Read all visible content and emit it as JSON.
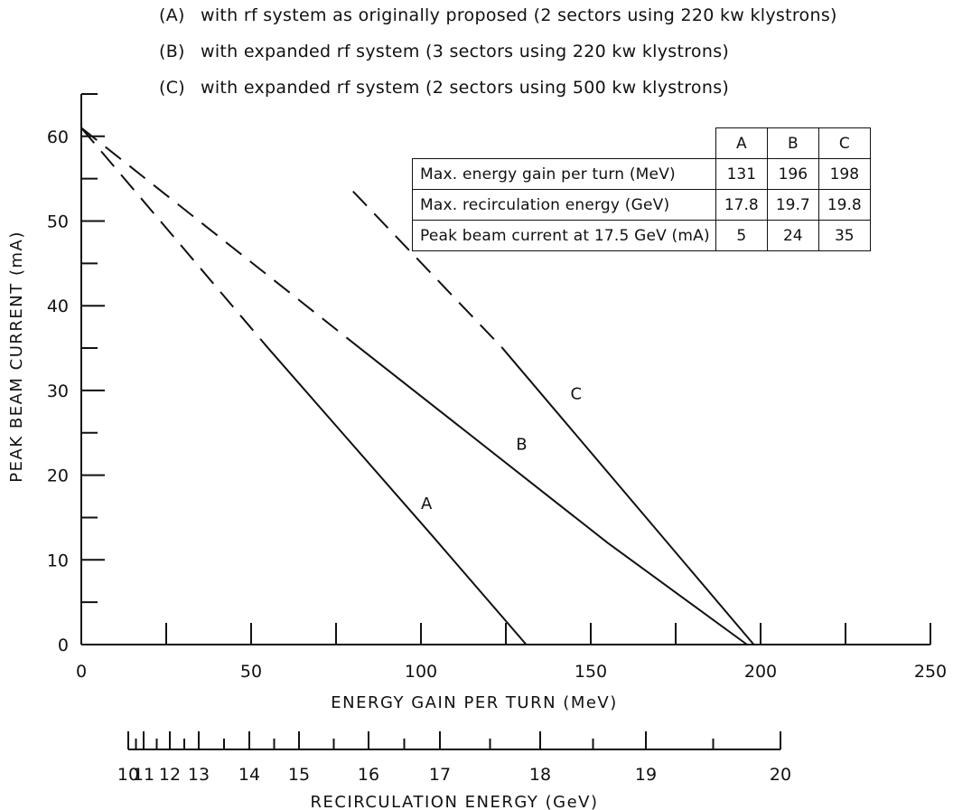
{
  "legend": [
    {
      "key": "(A)",
      "text": "with rf system as originally proposed (2 sectors using 220 kw klystrons)"
    },
    {
      "key": "(B)",
      "text": "with expanded rf system (3 sectors using 220 kw klystrons)"
    },
    {
      "key": "(C)",
      "text": "with expanded rf system (2 sectors using 500 kw klystrons)"
    }
  ],
  "table": {
    "columns": [
      "A",
      "B",
      "C"
    ],
    "rows": [
      {
        "label": "Max. energy gain per turn (MeV)",
        "values": [
          "131",
          "196",
          "198"
        ]
      },
      {
        "label": "Max. recirculation energy (GeV)",
        "values": [
          "17.8",
          "19.7",
          "19.8"
        ]
      },
      {
        "label": "Peak beam current at 17.5 GeV (mA)",
        "values": [
          "5",
          "24",
          "35"
        ]
      }
    ]
  },
  "chart_data": {
    "type": "line",
    "xlabel": "ENERGY GAIN PER TURN (MeV)",
    "ylabel": "PEAK BEAM CURRENT (mA)",
    "xlim": [
      0,
      250
    ],
    "ylim": [
      0,
      65
    ],
    "x_ticks": [
      0,
      50,
      100,
      150,
      200,
      250
    ],
    "y_ticks": [
      0,
      10,
      20,
      30,
      40,
      50,
      60
    ],
    "series": [
      {
        "name": "A",
        "label_at": [
          100,
          16
        ],
        "dashed": [
          [
            0,
            61
          ],
          [
            55,
            35
          ]
        ],
        "solid": [
          [
            55,
            35
          ],
          [
            103,
            13
          ],
          [
            131,
            0
          ]
        ]
      },
      {
        "name": "B",
        "label_at": [
          128,
          23
        ],
        "dashed": [
          [
            0,
            61
          ],
          [
            82,
            35
          ]
        ],
        "solid": [
          [
            82,
            35
          ],
          [
            155,
            12
          ],
          [
            196,
            0
          ]
        ]
      },
      {
        "name": "C",
        "label_at": [
          144,
          29
        ],
        "dashed": [
          [
            80,
            53.5
          ],
          [
            124,
            35
          ]
        ],
        "solid": [
          [
            124,
            35
          ],
          [
            198,
            0
          ]
        ]
      }
    ],
    "secondary_axis": {
      "label": "RECIRCULATION ENERGY (GeV)",
      "ticks": [
        "10",
        "11",
        "12",
        "13",
        "14",
        "15",
        "16",
        "17",
        "18",
        "19",
        "20"
      ]
    }
  }
}
